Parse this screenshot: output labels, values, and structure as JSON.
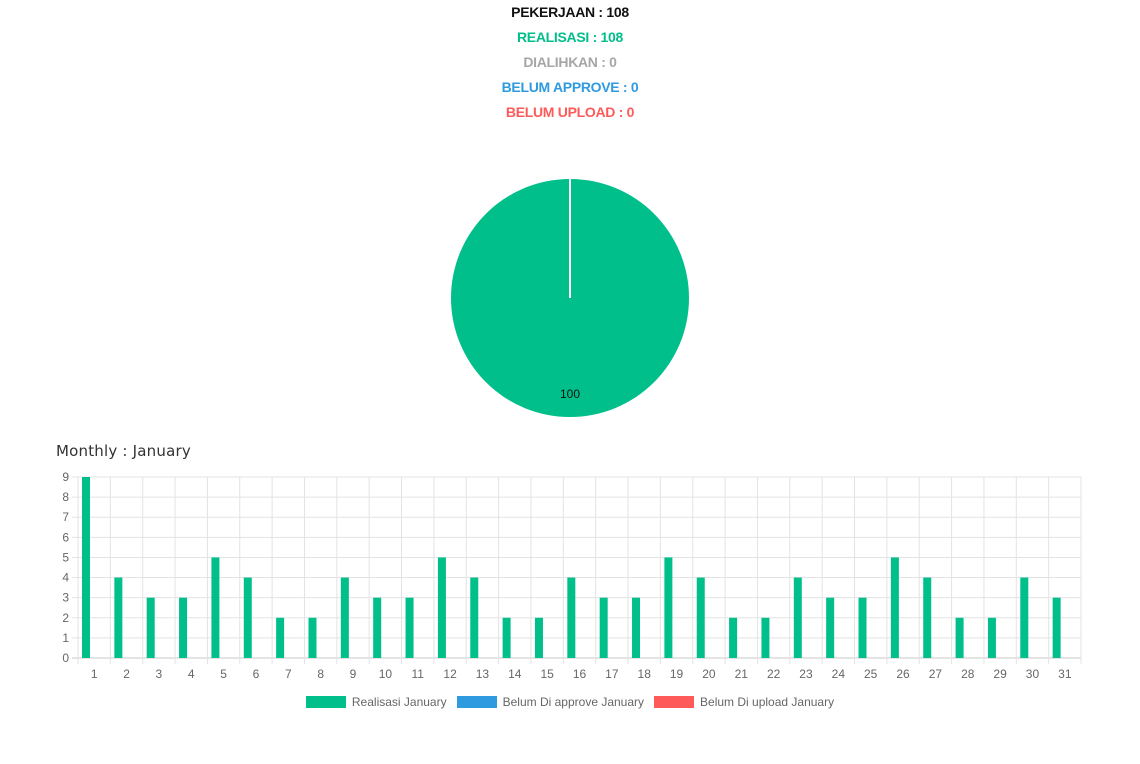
{
  "summary": {
    "pekerjaan": "PEKERJAAN : 108",
    "realisasi": "REALISASI : 108",
    "dialihkan": "DIALIHKAN : 0",
    "belum_approve": "BELUM APPROVE : 0",
    "belum_upload": "BELUM UPLOAD : 0"
  },
  "colors": {
    "realisasi": "#00bf8a",
    "dialihkan": "#a6a6a6",
    "belum_approve": "#2f9ae0",
    "belum_upload": "#ff5a5a"
  },
  "monthly_title": "Monthly : January",
  "chart_data": [
    {
      "type": "pie",
      "categories": [
        "Realisasi",
        "Dialihkan",
        "Belum Approve",
        "Belum Upload"
      ],
      "values": [
        100,
        0,
        0,
        0
      ],
      "data_labels": [
        "100",
        "",
        "",
        ""
      ]
    },
    {
      "type": "bar",
      "categories": [
        "1",
        "2",
        "3",
        "4",
        "5",
        "6",
        "7",
        "8",
        "9",
        "10",
        "11",
        "12",
        "13",
        "14",
        "15",
        "16",
        "17",
        "18",
        "19",
        "20",
        "21",
        "22",
        "23",
        "24",
        "25",
        "26",
        "27",
        "28",
        "29",
        "30",
        "31"
      ],
      "series": [
        {
          "name": "Realisasi January",
          "values": [
            9,
            4,
            3,
            3,
            5,
            4,
            2,
            2,
            4,
            3,
            3,
            5,
            4,
            2,
            2,
            4,
            3,
            3,
            5,
            4,
            2,
            2,
            4,
            3,
            3,
            5,
            4,
            2,
            2,
            4,
            3
          ]
        },
        {
          "name": "Belum Di approve January",
          "values": [
            0,
            0,
            0,
            0,
            0,
            0,
            0,
            0,
            0,
            0,
            0,
            0,
            0,
            0,
            0,
            0,
            0,
            0,
            0,
            0,
            0,
            0,
            0,
            0,
            0,
            0,
            0,
            0,
            0,
            0,
            0
          ]
        },
        {
          "name": "Belum Di upload January",
          "values": [
            0,
            0,
            0,
            0,
            0,
            0,
            0,
            0,
            0,
            0,
            0,
            0,
            0,
            0,
            0,
            0,
            0,
            0,
            0,
            0,
            0,
            0,
            0,
            0,
            0,
            0,
            0,
            0,
            0,
            0,
            0
          ]
        }
      ],
      "ylim": [
        0,
        9
      ],
      "yticks": [
        0,
        1,
        2,
        3,
        4,
        5,
        6,
        7,
        8,
        9
      ],
      "grid": true,
      "legend": "bottom"
    }
  ]
}
